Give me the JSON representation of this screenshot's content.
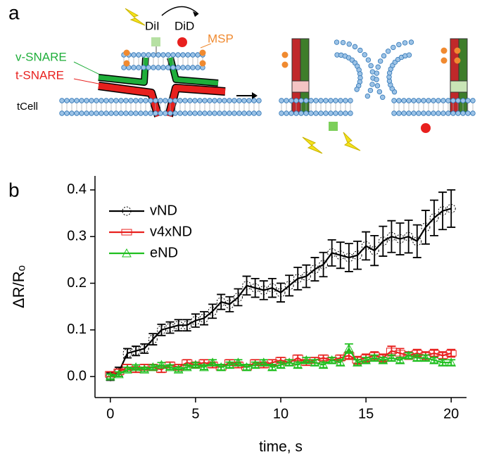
{
  "panel_labels": [
    "a",
    "b"
  ],
  "diagram": {
    "labels": [
      "DiI",
      "DiD",
      "MSP",
      "v-SNARE",
      "t-SNARE",
      "tCell"
    ]
  },
  "chart_data": {
    "type": "line",
    "xlabel": "time, s",
    "ylabel": "ΔR/Rₒ",
    "x": [
      0,
      0.5,
      1,
      1.5,
      2,
      2.5,
      3,
      3.5,
      4,
      4.5,
      5,
      5.5,
      6,
      6.5,
      7,
      7.5,
      8,
      8.5,
      9,
      9.5,
      10,
      10.5,
      11,
      11.5,
      12,
      12.5,
      13,
      13.5,
      14,
      14.5,
      15,
      15.5,
      16,
      16.5,
      17,
      17.5,
      18,
      18.5,
      19,
      19.5,
      20
    ],
    "xlim": [
      -0.9,
      20.9
    ],
    "xticks": [
      0,
      5,
      10,
      15,
      20
    ],
    "ylim": [
      -0.045,
      0.43
    ],
    "yticks": [
      {
        "value": 0,
        "label": "0.0"
      },
      0.1,
      0.2,
      0.3,
      0.4
    ],
    "legend": "upper left",
    "series": [
      {
        "name": "vND",
        "color": "#000000",
        "marker": "circle",
        "values": [
          0,
          0.01,
          0.05,
          0.055,
          0.06,
          0.08,
          0.1,
          0.105,
          0.11,
          0.11,
          0.12,
          0.125,
          0.14,
          0.16,
          0.155,
          0.17,
          0.195,
          0.19,
          0.185,
          0.19,
          0.18,
          0.195,
          0.21,
          0.215,
          0.23,
          0.24,
          0.265,
          0.26,
          0.255,
          0.26,
          0.28,
          0.27,
          0.29,
          0.3,
          0.295,
          0.3,
          0.29,
          0.32,
          0.34,
          0.355,
          0.36
        ],
        "errors": [
          0.008,
          0.01,
          0.01,
          0.01,
          0.01,
          0.012,
          0.012,
          0.012,
          0.012,
          0.012,
          0.014,
          0.014,
          0.015,
          0.016,
          0.016,
          0.018,
          0.02,
          0.02,
          0.02,
          0.02,
          0.02,
          0.022,
          0.024,
          0.024,
          0.025,
          0.026,
          0.028,
          0.028,
          0.03,
          0.03,
          0.03,
          0.032,
          0.032,
          0.034,
          0.034,
          0.035,
          0.035,
          0.036,
          0.038,
          0.04,
          0.04
        ]
      },
      {
        "name": "v4xND",
        "color": "#e8201e",
        "marker": "rect",
        "values": [
          0.005,
          0.01,
          0.02,
          0.015,
          0.02,
          0.02,
          0.015,
          0.025,
          0.02,
          0.03,
          0.025,
          0.03,
          0.025,
          0.02,
          0.03,
          0.025,
          0.02,
          0.03,
          0.025,
          0.03,
          0.035,
          0.03,
          0.04,
          0.03,
          0.035,
          0.04,
          0.035,
          0.04,
          0.045,
          0.035,
          0.04,
          0.045,
          0.04,
          0.055,
          0.05,
          0.045,
          0.05,
          0.045,
          0.05,
          0.045,
          0.05
        ],
        "errors": [
          0.005,
          0.006,
          0.006,
          0.006,
          0.006,
          0.006,
          0.006,
          0.006,
          0.006,
          0.006,
          0.006,
          0.006,
          0.006,
          0.006,
          0.006,
          0.006,
          0.006,
          0.006,
          0.006,
          0.006,
          0.006,
          0.006,
          0.006,
          0.006,
          0.006,
          0.006,
          0.006,
          0.006,
          0.008,
          0.008,
          0.008,
          0.008,
          0.008,
          0.01,
          0.01,
          0.008,
          0.008,
          0.008,
          0.008,
          0.008,
          0.008
        ]
      },
      {
        "name": "eND",
        "color": "#1fbf1f",
        "marker": "triangle",
        "values": [
          0,
          0.005,
          0.015,
          0.02,
          0.015,
          0.02,
          0.025,
          0.02,
          0.015,
          0.02,
          0.025,
          0.02,
          0.03,
          0.02,
          0.025,
          0.03,
          0.02,
          0.025,
          0.03,
          0.02,
          0.025,
          0.03,
          0.025,
          0.035,
          0.03,
          0.025,
          0.035,
          0.03,
          0.06,
          0.03,
          0.035,
          0.04,
          0.035,
          0.04,
          0.035,
          0.045,
          0.04,
          0.04,
          0.035,
          0.03,
          0.03
        ],
        "errors": [
          0.005,
          0.005,
          0.005,
          0.005,
          0.005,
          0.005,
          0.005,
          0.005,
          0.005,
          0.005,
          0.005,
          0.005,
          0.006,
          0.006,
          0.006,
          0.006,
          0.006,
          0.006,
          0.006,
          0.006,
          0.006,
          0.006,
          0.006,
          0.006,
          0.006,
          0.006,
          0.006,
          0.006,
          0.01,
          0.006,
          0.006,
          0.006,
          0.006,
          0.006,
          0.006,
          0.006,
          0.006,
          0.006,
          0.006,
          0.006,
          0.006
        ]
      }
    ]
  }
}
